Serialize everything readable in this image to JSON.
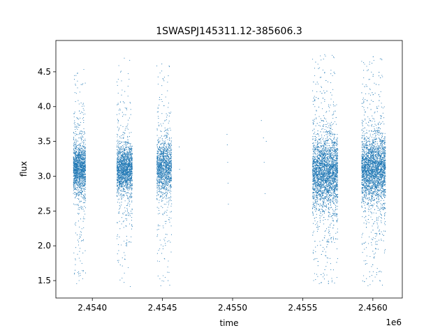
{
  "chart_data": {
    "type": "scatter",
    "title": "1SWASPJ145311.12-385606.3",
    "xlabel": "time",
    "ylabel": "flux",
    "x_offset_label": "1e6",
    "xlim": [
      2453740,
      2456210
    ],
    "ylim": [
      1.25,
      4.95
    ],
    "x_ticks": [
      2454000,
      2454500,
      2455000,
      2455500,
      2456000
    ],
    "x_tick_labels": [
      "2.4540",
      "2.4545",
      "2.4550",
      "2.4555",
      "2.4560"
    ],
    "y_ticks": [
      1.5,
      2.0,
      2.5,
      3.0,
      3.5,
      4.0,
      4.5
    ],
    "y_tick_labels": [
      "1.5",
      "2.0",
      "2.5",
      "3.0",
      "3.5",
      "4.0",
      "4.5"
    ],
    "grid": false,
    "marker_color": "#1f77b4",
    "series": [
      {
        "segments": [
          {
            "x_range": [
              2453865,
              2453952
            ],
            "center": 3.12,
            "core_spread": 0.32,
            "tail_low": 1.45,
            "tail_high": 4.58,
            "density": 1600
          },
          {
            "x_range": [
              2454175,
              2454285
            ],
            "center": 3.1,
            "core_spread": 0.3,
            "tail_low": 1.4,
            "tail_high": 4.7,
            "density": 1800
          },
          {
            "x_range": [
              2454460,
              2454565
            ],
            "center": 3.12,
            "core_spread": 0.35,
            "tail_low": 1.42,
            "tail_high": 4.62,
            "density": 1400
          },
          {
            "x_range": [
              2455570,
              2455750
            ],
            "center": 3.05,
            "core_spread": 0.45,
            "tail_low": 1.45,
            "tail_high": 4.75,
            "density": 3400
          },
          {
            "x_range": [
              2455920,
              2456090
            ],
            "center": 3.1,
            "core_spread": 0.42,
            "tail_low": 1.42,
            "tail_high": 4.72,
            "density": 3200
          }
        ],
        "isolated_points": [
          {
            "x": 2454620,
            "y": 3.42
          },
          {
            "x": 2454622,
            "y": 3.1
          },
          {
            "x": 2454960,
            "y": 3.6
          },
          {
            "x": 2454962,
            "y": 3.45
          },
          {
            "x": 2454965,
            "y": 3.2
          },
          {
            "x": 2454968,
            "y": 2.9
          },
          {
            "x": 2454970,
            "y": 2.6
          },
          {
            "x": 2455205,
            "y": 3.8
          },
          {
            "x": 2455220,
            "y": 3.55
          },
          {
            "x": 2455225,
            "y": 3.2
          },
          {
            "x": 2455232,
            "y": 2.75
          },
          {
            "x": 2455240,
            "y": 3.5
          }
        ]
      }
    ]
  }
}
